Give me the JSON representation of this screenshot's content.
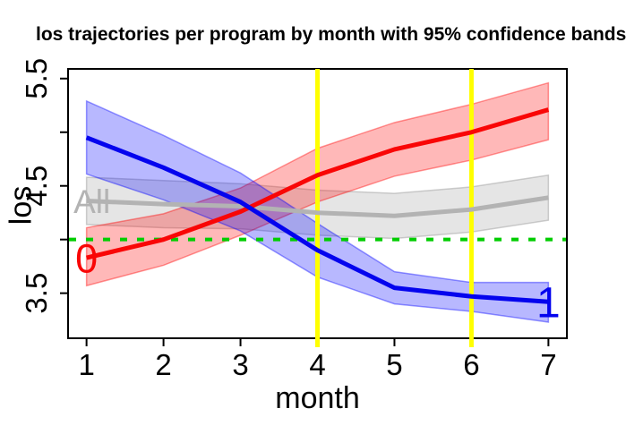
{
  "title": "los trajectories per program by month with 95% confidence bands",
  "x_axis": {
    "label": "month",
    "tick_labels": [
      "1",
      "2",
      "3",
      "4",
      "5",
      "6",
      "7"
    ]
  },
  "y_axis": {
    "label": "los",
    "tick_labels": [
      "3.5",
      "4.5",
      "5.5"
    ]
  },
  "chart_data": {
    "type": "line",
    "title": "los trajectories per program by month with 95% confidence bands",
    "xlabel": "month",
    "ylabel": "los",
    "x": [
      1,
      2,
      3,
      4,
      5,
      6,
      7
    ],
    "xlim": [
      0.76,
      7.24
    ],
    "ylim": [
      3.08,
      5.59
    ],
    "grid": false,
    "legend": "inline-labels",
    "y_ticks_all": [
      3.5,
      4.0,
      4.5,
      5.0,
      5.5
    ],
    "y_ticks_labeled": [
      3.5,
      4.5,
      5.5
    ],
    "series": [
      {
        "name": "All",
        "label": "All",
        "color": "#b3b3b3",
        "band_fill": "rgba(168,168,168,0.30)",
        "band_edge": "rgba(150,150,150,0.45)",
        "values": [
          4.36,
          4.33,
          4.31,
          4.25,
          4.22,
          4.28,
          4.39
        ],
        "upper": [
          4.58,
          4.55,
          4.52,
          4.46,
          4.43,
          4.49,
          4.6
        ],
        "lower": [
          4.14,
          4.11,
          4.1,
          4.04,
          4.01,
          4.07,
          4.18
        ],
        "label_x": 1.07,
        "label_y": 4.36,
        "label_size": 37
      },
      {
        "name": "0",
        "label": "0",
        "color": "#f90606",
        "band_fill": "rgba(255,0,0,0.28)",
        "band_edge": "rgba(255,0,0,0.40)",
        "values": [
          3.83,
          4.0,
          4.26,
          4.6,
          4.84,
          5.0,
          5.21
        ],
        "upper": [
          4.11,
          4.24,
          4.48,
          4.85,
          5.09,
          5.26,
          5.46
        ],
        "lower": [
          3.57,
          3.76,
          4.04,
          4.35,
          4.59,
          4.74,
          4.93
        ],
        "label_x": 1,
        "label_y": 3.83,
        "label_size": 45
      },
      {
        "name": "1",
        "label": "1",
        "color": "#0404ee",
        "band_fill": "rgba(0,0,255,0.28)",
        "band_edge": "rgba(0,0,255,0.40)",
        "values": [
          4.95,
          4.67,
          4.35,
          3.9,
          3.55,
          3.47,
          3.42
        ],
        "upper": [
          5.29,
          4.97,
          4.62,
          4.15,
          3.7,
          3.6,
          3.6
        ],
        "lower": [
          4.61,
          4.37,
          4.08,
          3.65,
          3.4,
          3.33,
          3.23
        ],
        "label_x": 7,
        "label_y": 3.42,
        "label_size": 48
      }
    ],
    "reference_lines": {
      "vertical": {
        "x": [
          4,
          6
        ],
        "color": "#ffff00",
        "width": 5
      },
      "horizontal": {
        "y": 4.0,
        "color": "#00cd00",
        "width": 4,
        "dash": [
          8,
          11
        ]
      }
    },
    "line_width": 5,
    "axis_color": "#000000"
  }
}
